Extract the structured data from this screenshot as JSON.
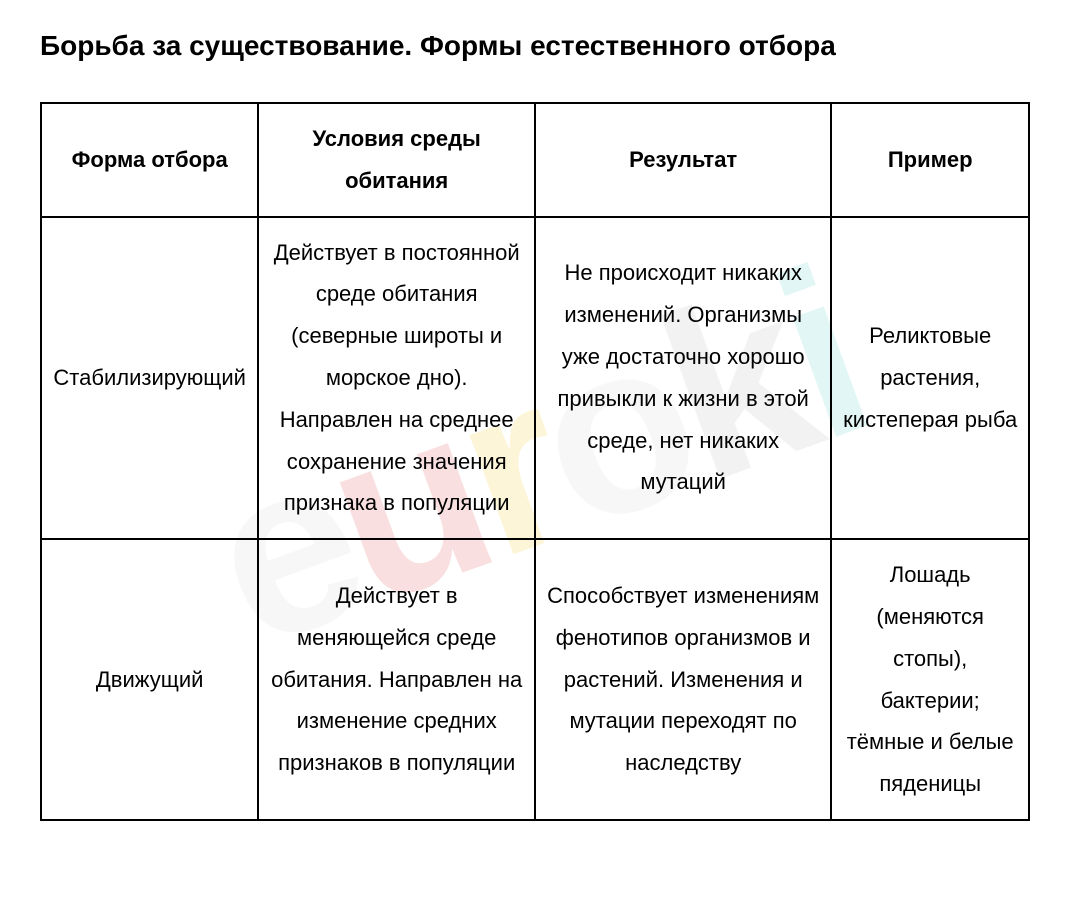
{
  "title": "Борьба за существование. Формы естественного отбора",
  "watermark": {
    "text": "euroki",
    "chars": [
      "e",
      "u",
      "r",
      "o",
      "k",
      "i"
    ],
    "colors": [
      "#d0d0d0",
      "#de3333",
      "#f2c200",
      "#d0d0d0",
      "#b0b0b0",
      "#45c5c1"
    ]
  },
  "table": {
    "type": "table",
    "columns": [
      "Форма отбора",
      "Условия среды обитания",
      "Результат",
      "Пример"
    ],
    "column_widths": [
      "22%",
      "28%",
      "30%",
      "20%"
    ],
    "border_color": "#000000",
    "background_color": "#ffffff",
    "header_fontsize": 22,
    "cell_fontsize": 22,
    "text_color": "#000000",
    "rows": [
      {
        "form": "Стабилизирующий",
        "conditions": "Действует в постоянной среде обитания (северные широты и морское дно). Направлен на среднее сохранение значения признака в популяции",
        "result": "Не происходит никаких изменений. Организмы уже достаточно хорошо привыкли к жизни в этой среде, нет никаких мутаций",
        "example": "Реликтовые растения, кистеперая рыба"
      },
      {
        "form": "Движущий",
        "conditions": "Действует в меняющейся среде обитания. Направлен на изменение средних признаков в популяции",
        "result": "Способствует изменениям фенотипов организмов и растений. Изменения и мутации переходят по наследству",
        "example": "Лошадь (меняются стопы), бактерии; тёмные и белые пяденицы"
      }
    ]
  }
}
